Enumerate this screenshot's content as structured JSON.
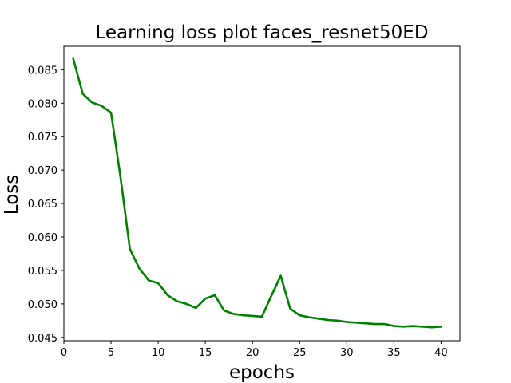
{
  "chart_data": {
    "type": "line",
    "title": "Learning loss plot faces_resnet50ED",
    "xlabel": "epochs",
    "ylabel": "Loss",
    "xlim": [
      0,
      42
    ],
    "ylim": [
      0.0445,
      0.0885
    ],
    "xticks": [
      0,
      5,
      10,
      15,
      20,
      25,
      30,
      35,
      40
    ],
    "yticks": [
      0.045,
      0.05,
      0.055,
      0.06,
      0.065,
      0.07,
      0.075,
      0.08,
      0.085
    ],
    "grid": false,
    "legend": "none",
    "series": [
      {
        "color": "#008000",
        "x": [
          1,
          2,
          3,
          4,
          5,
          6,
          7,
          8,
          9,
          10,
          11,
          12,
          13,
          14,
          15,
          16,
          17,
          18,
          19,
          20,
          21,
          22,
          23,
          24,
          25,
          26,
          27,
          28,
          29,
          30,
          31,
          32,
          33,
          34,
          35,
          36,
          37,
          38,
          39,
          40
        ],
        "y": [
          0.0866,
          0.0814,
          0.0801,
          0.0796,
          0.0786,
          0.069,
          0.0582,
          0.0553,
          0.0535,
          0.0531,
          0.0513,
          0.0504,
          0.05,
          0.0494,
          0.0508,
          0.0513,
          0.049,
          0.0485,
          0.0483,
          0.0482,
          0.0481,
          0.0512,
          0.0542,
          0.0493,
          0.0483,
          0.048,
          0.0478,
          0.0476,
          0.0475,
          0.0473,
          0.0472,
          0.0471,
          0.047,
          0.047,
          0.0467,
          0.0466,
          0.0467,
          0.0466,
          0.0465,
          0.0466
        ]
      }
    ]
  }
}
